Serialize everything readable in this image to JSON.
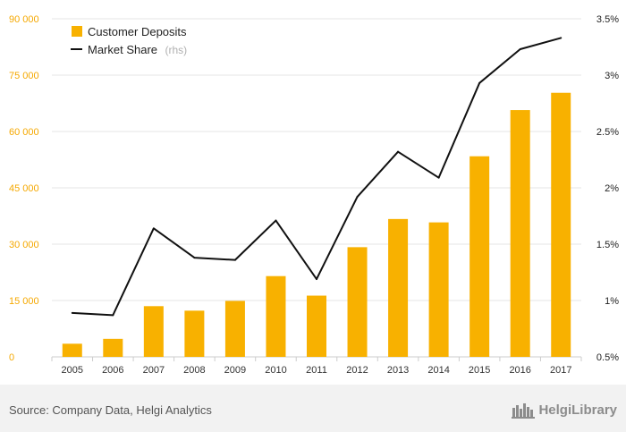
{
  "chart_data": {
    "type": "bar",
    "categories": [
      "2005",
      "2006",
      "2007",
      "2008",
      "2009",
      "2010",
      "2011",
      "2012",
      "2013",
      "2014",
      "2015",
      "2016",
      "2017"
    ],
    "series": [
      {
        "name": "Customer Deposits",
        "type": "bar",
        "axis": "left",
        "color": "#f8b100",
        "values": [
          3500,
          4800,
          13500,
          12300,
          14900,
          21500,
          16300,
          29200,
          36700,
          35800,
          53400,
          65700,
          70300
        ]
      },
      {
        "name": "Market Share",
        "type": "line",
        "axis": "right",
        "color": "#111111",
        "values": [
          0.89,
          0.87,
          1.64,
          1.38,
          1.36,
          1.71,
          1.19,
          1.92,
          2.32,
          2.09,
          2.93,
          3.23,
          3.33
        ]
      }
    ],
    "legend_note": "(rhs)",
    "y_left": {
      "min": 0,
      "max": 90000,
      "ticks": [
        0,
        15000,
        30000,
        45000,
        60000,
        75000,
        90000
      ],
      "tick_labels": [
        "0",
        "15 000",
        "30 000",
        "45 000",
        "60 000",
        "75 000",
        "90 000"
      ],
      "color": "#f5a800"
    },
    "y_right": {
      "min": 0.5,
      "max": 3.5,
      "ticks": [
        0.5,
        1,
        1.5,
        2,
        2.5,
        3,
        3.5
      ],
      "tick_labels": [
        "0.5%",
        "1%",
        "1.5%",
        "2%",
        "2.5%",
        "3%",
        "3.5%"
      ]
    },
    "grid": true,
    "legend_position": "top-left"
  },
  "footer": {
    "source": "Source: Company Data, Helgi Analytics",
    "logo_text": "HelgiLibrary"
  }
}
